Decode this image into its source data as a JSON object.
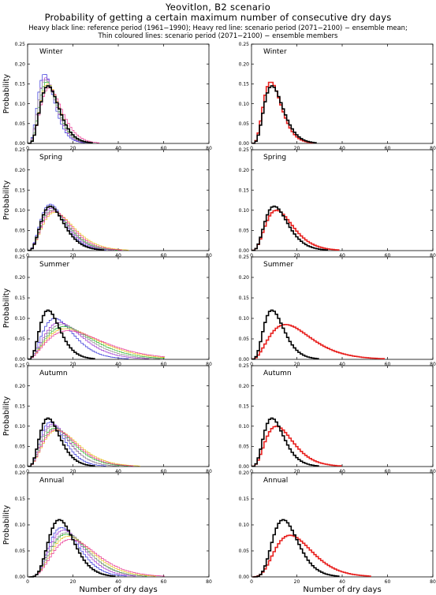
{
  "header": {
    "title": "Yeovitlon, B2 scenario",
    "subtitle": "Probability of getting a certain maximum number of consecutive dry days",
    "legend_line1": "Heavy black line: reference period (1961−1990); Heavy red line: scenario period (2071−2100) − ensemble mean;",
    "legend_line2": "Thin coloured lines: scenario period (2071−2100) − ensemble members"
  },
  "chart_data": {
    "type": "line",
    "x_label": "Number of dry days",
    "y_label": "Probability",
    "x_ticks": [
      0,
      20,
      40,
      60,
      80
    ],
    "xlim": [
      0,
      80
    ],
    "colors": {
      "reference": "#000000",
      "ensemble_mean": "#e8201e",
      "members": [
        "#2f2fd8",
        "#9a30d0",
        "#28b828",
        "#e8c020",
        "#8a8a8a",
        "#e83090"
      ]
    },
    "panels": [
      {
        "season": "Winter",
        "ylim": [
          0,
          0.25
        ],
        "y_ticks": [
          "0.00",
          "0.05",
          "0.10",
          "0.15",
          "0.20",
          "0.25"
        ],
        "reference": {
          "peak_x": 9,
          "peak": 0.145,
          "k": 5.5
        },
        "ensemble_mean": {
          "peak_x": 8.5,
          "peak": 0.155,
          "k": 5.5
        },
        "members": [
          {
            "peak_x": 7.5,
            "peak": 0.175,
            "k": 5.2
          },
          {
            "peak_x": 8,
            "peak": 0.165,
            "k": 5.3
          },
          {
            "peak_x": 8.5,
            "peak": 0.155,
            "k": 5.5
          },
          {
            "peak_x": 9,
            "peak": 0.15,
            "k": 5.5
          },
          {
            "peak_x": 8,
            "peak": 0.16,
            "k": 5.0
          },
          {
            "peak_x": 9.5,
            "peak": 0.14,
            "k": 5.0
          }
        ]
      },
      {
        "season": "Spring",
        "ylim": [
          0,
          0.25
        ],
        "y_ticks": [
          "0.00",
          "0.05",
          "0.10",
          "0.15",
          "0.20",
          "0.25"
        ],
        "reference": {
          "peak_x": 10,
          "peak": 0.11,
          "k": 4.8
        },
        "ensemble_mean": {
          "peak_x": 11,
          "peak": 0.1,
          "k": 4.3
        },
        "members": [
          {
            "peak_x": 10,
            "peak": 0.115,
            "k": 4.5
          },
          {
            "peak_x": 10.5,
            "peak": 0.105,
            "k": 4.3
          },
          {
            "peak_x": 11,
            "peak": 0.1,
            "k": 4.2
          },
          {
            "peak_x": 12,
            "peak": 0.095,
            "k": 4.0
          },
          {
            "peak_x": 11,
            "peak": 0.1,
            "k": 4.4
          },
          {
            "peak_x": 11.5,
            "peak": 0.098,
            "k": 4.1
          }
        ]
      },
      {
        "season": "Summer",
        "ylim": [
          0,
          0.25
        ],
        "y_ticks": [
          "0.00",
          "0.05",
          "0.10",
          "0.15",
          "0.20",
          "0.25"
        ],
        "reference": {
          "peak_x": 9,
          "peak": 0.12,
          "k": 5.0
        },
        "ensemble_mean": {
          "peak_x": 15,
          "peak": 0.085,
          "k": 3.6
        },
        "members": [
          {
            "peak_x": 12,
            "peak": 0.1,
            "k": 4.0
          },
          {
            "peak_x": 14,
            "peak": 0.09,
            "k": 3.8
          },
          {
            "peak_x": 16,
            "peak": 0.08,
            "k": 3.4
          },
          {
            "peak_x": 17,
            "peak": 0.075,
            "k": 3.2
          },
          {
            "peak_x": 15,
            "peak": 0.085,
            "k": 3.6
          },
          {
            "peak_x": 18,
            "peak": 0.07,
            "k": 3.1
          }
        ]
      },
      {
        "season": "Autumn",
        "ylim": [
          0,
          0.25
        ],
        "y_ticks": [
          "0.00",
          "0.05",
          "0.10",
          "0.15",
          "0.20",
          "0.25"
        ],
        "reference": {
          "peak_x": 9,
          "peak": 0.12,
          "k": 5.0
        },
        "ensemble_mean": {
          "peak_x": 11,
          "peak": 0.1,
          "k": 4.2
        },
        "members": [
          {
            "peak_x": 10,
            "peak": 0.11,
            "k": 4.6
          },
          {
            "peak_x": 11,
            "peak": 0.105,
            "k": 4.3
          },
          {
            "peak_x": 12,
            "peak": 0.095,
            "k": 4.0
          },
          {
            "peak_x": 13,
            "peak": 0.09,
            "k": 3.8
          },
          {
            "peak_x": 11,
            "peak": 0.1,
            "k": 4.2
          },
          {
            "peak_x": 12.5,
            "peak": 0.092,
            "k": 3.9
          }
        ]
      },
      {
        "season": "Annual",
        "ylim": [
          0,
          0.2
        ],
        "y_ticks": [
          "0.00",
          "0.05",
          "0.10",
          "0.15",
          "0.20"
        ],
        "reference": {
          "peak_x": 14,
          "peak": 0.11,
          "k": 7.0
        },
        "ensemble_mean": {
          "peak_x": 17,
          "peak": 0.08,
          "k": 5.2
        },
        "members": [
          {
            "peak_x": 15,
            "peak": 0.095,
            "k": 6.0
          },
          {
            "peak_x": 16,
            "peak": 0.09,
            "k": 5.6
          },
          {
            "peak_x": 17,
            "peak": 0.082,
            "k": 5.2
          },
          {
            "peak_x": 18,
            "peak": 0.078,
            "k": 5.0
          },
          {
            "peak_x": 17,
            "peak": 0.085,
            "k": 5.4
          },
          {
            "peak_x": 19,
            "peak": 0.072,
            "k": 4.8
          }
        ]
      }
    ]
  }
}
